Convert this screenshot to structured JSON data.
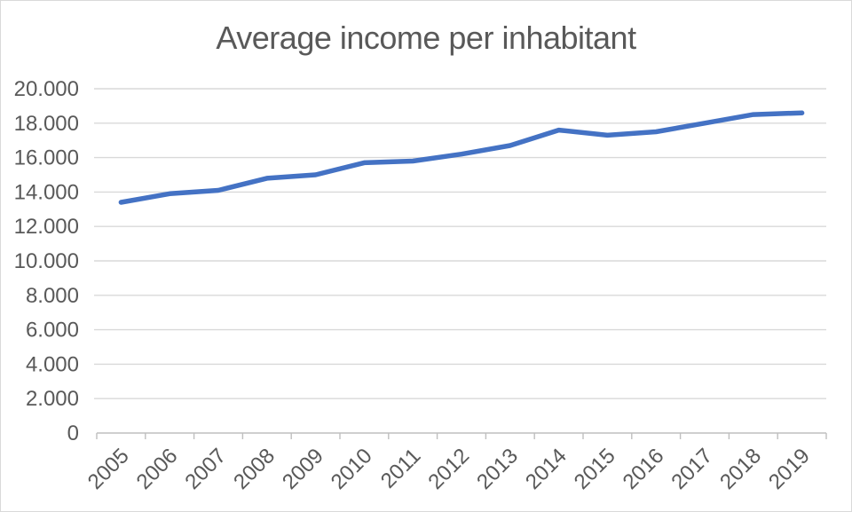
{
  "chart_data": {
    "type": "line",
    "title": "Average income per inhabitant",
    "categories": [
      "2005",
      "2006",
      "2007",
      "2008",
      "2009",
      "2010",
      "2011",
      "2012",
      "2013",
      "2014",
      "2015",
      "2016",
      "2017",
      "2018",
      "2019"
    ],
    "values": [
      13400,
      13900,
      14100,
      14800,
      15000,
      15700,
      15800,
      16200,
      16700,
      17600,
      17300,
      17500,
      18000,
      18500,
      18600
    ],
    "xlabel": "",
    "ylabel": "",
    "ylim": [
      0,
      20000
    ],
    "ytick_interval": 2000,
    "ytick_labels": [
      "0",
      "2.000",
      "4.000",
      "6.000",
      "8.000",
      "10.000",
      "12.000",
      "14.000",
      "16.000",
      "18.000",
      "20.000"
    ],
    "grid": true,
    "legend": false,
    "colors": {
      "line": "#4472C4",
      "title_text": "#595959",
      "axis_text": "#595959",
      "gridline": "#D9D9D9",
      "axis_line": "#BFBFBF",
      "background": "#FFFFFF",
      "border": "#D9D9D9"
    }
  }
}
